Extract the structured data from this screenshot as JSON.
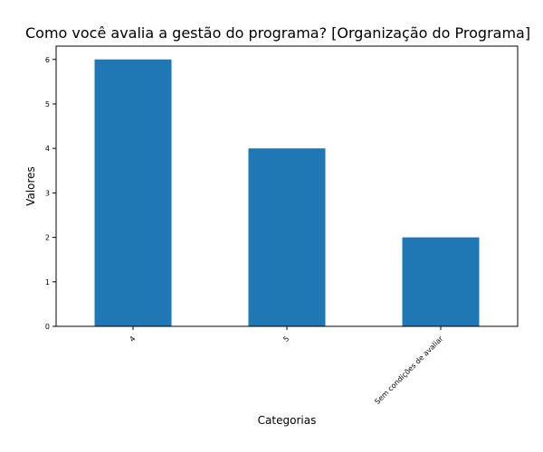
{
  "chart_data": {
    "type": "bar",
    "title": "Como você avalia a gestão do programa? [Organização do Programa]",
    "xlabel": "Categorias",
    "ylabel": "Valores",
    "categories": [
      "4",
      "5",
      "Sem condições de avaliar"
    ],
    "values": [
      6,
      4,
      2
    ],
    "ylim": [
      0,
      6.3
    ],
    "yticks": [
      0,
      1,
      2,
      3,
      4,
      5,
      6
    ],
    "bar_color": "#1f77b4",
    "grid": false,
    "legend": "none"
  }
}
